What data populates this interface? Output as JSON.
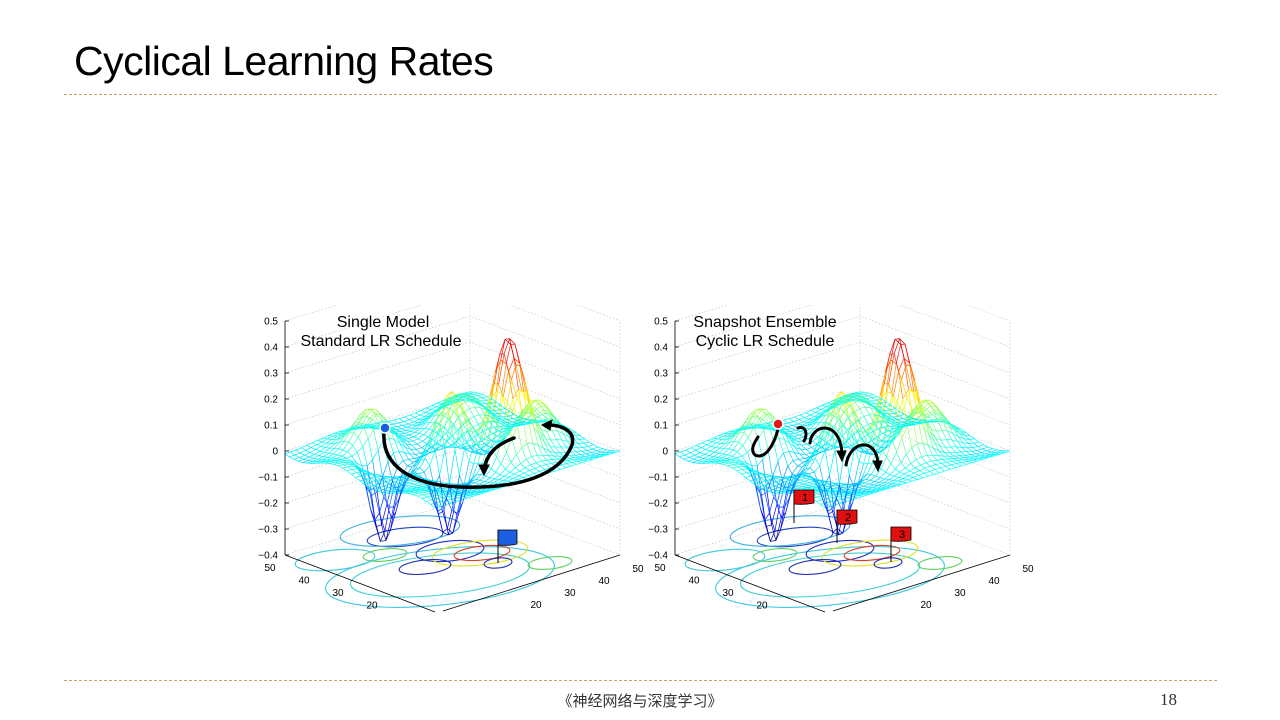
{
  "slide": {
    "title": "Cyclical Learning Rates",
    "footer": "《神经网络与深度学习》",
    "page_number": "18"
  },
  "figure": {
    "z_ticks": [
      "0.5",
      "0.4",
      "0.3",
      "0.2",
      "0.1",
      "0",
      "−0.1",
      "−0.2",
      "−0.3",
      "−0.4"
    ],
    "left_axis_ticks": [
      "50",
      "40",
      "30",
      "20"
    ],
    "right_axis_ticks": [
      "20",
      "30",
      "40",
      "50"
    ],
    "panels": [
      {
        "title_line1": "Single Model",
        "title_line2": "Standard LR Schedule",
        "start_color": "#1a5fe0",
        "flag_color": "#1a5fe0",
        "flags": [
          ""
        ]
      },
      {
        "title_line1": "Snapshot Ensemble",
        "title_line2": "Cyclic LR Schedule",
        "start_color": "#e01a1a",
        "flag_color": "#e01010",
        "flags": [
          "1",
          "2",
          "3"
        ]
      }
    ]
  }
}
